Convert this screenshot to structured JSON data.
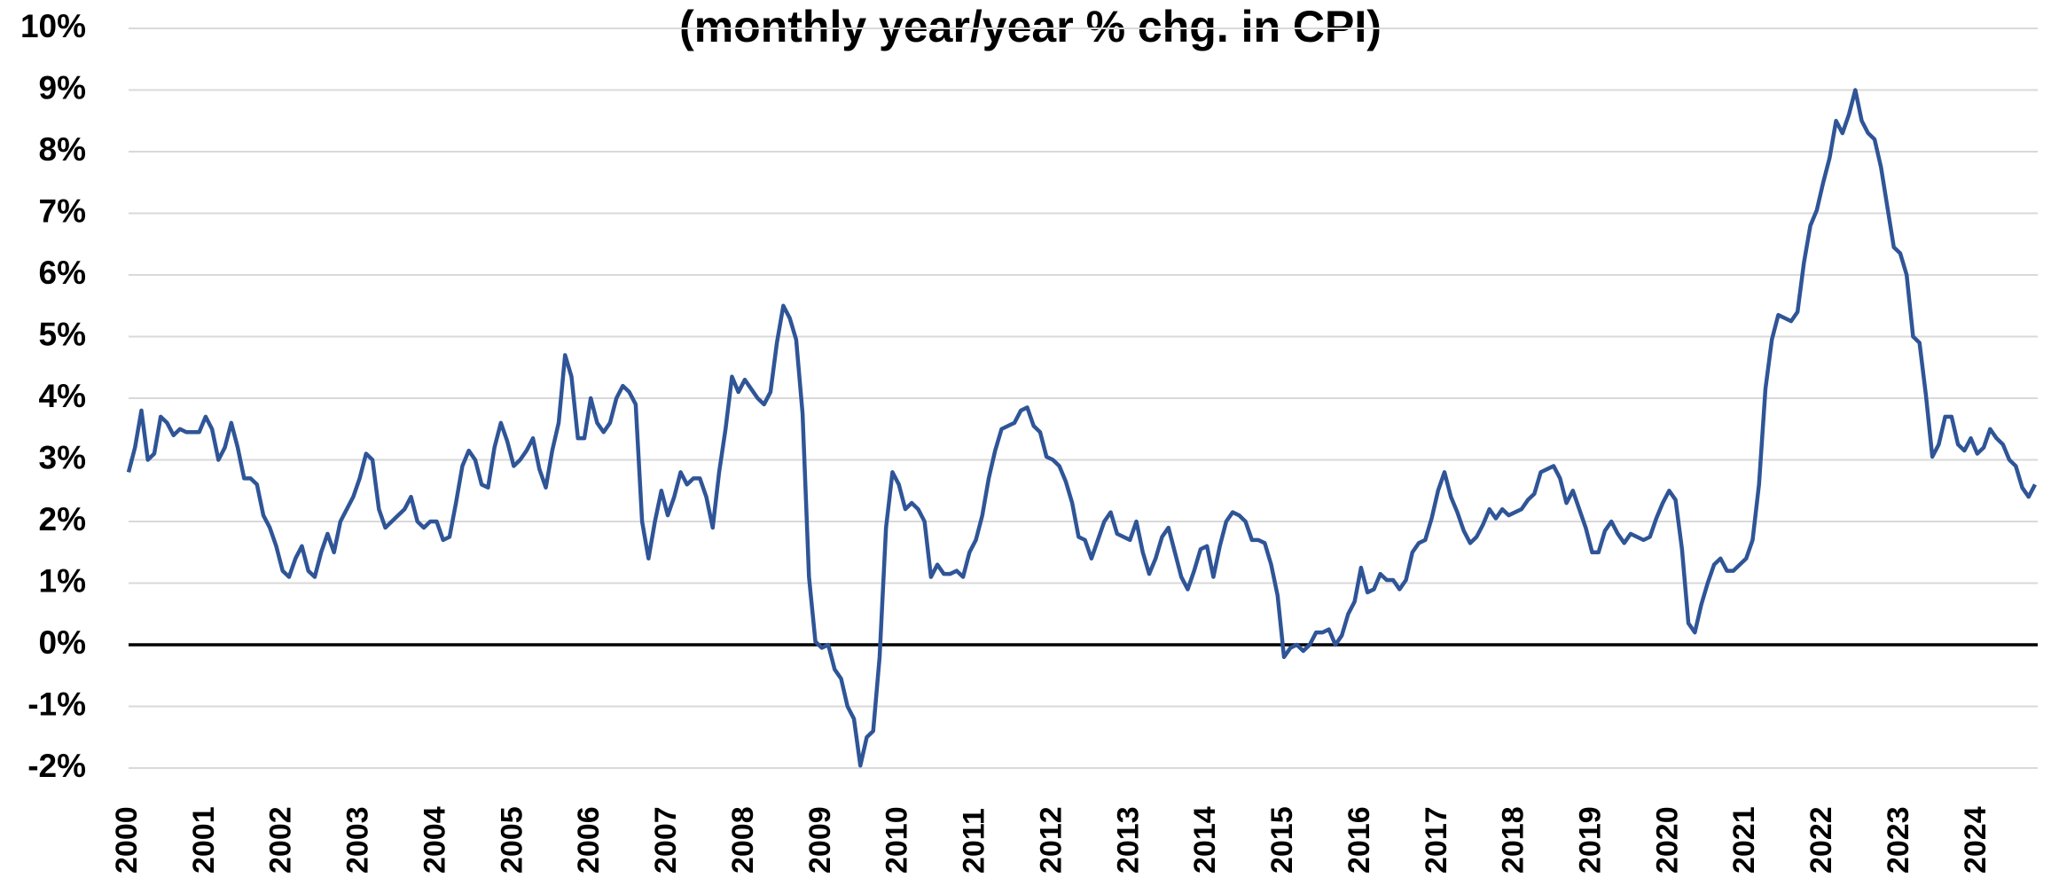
{
  "chart_data": {
    "type": "line",
    "title": "(monthly year/year % chg. in CPI)",
    "categories": [
      "2000",
      null,
      null,
      null,
      null,
      null,
      null,
      null,
      null,
      null,
      null,
      null,
      "2001",
      null,
      null,
      null,
      null,
      null,
      null,
      null,
      null,
      null,
      null,
      null,
      "2002",
      null,
      null,
      null,
      null,
      null,
      null,
      null,
      null,
      null,
      null,
      null,
      "2003",
      null,
      null,
      null,
      null,
      null,
      null,
      null,
      null,
      null,
      null,
      null,
      "2004",
      null,
      null,
      null,
      null,
      null,
      null,
      null,
      null,
      null,
      null,
      null,
      "2005",
      null,
      null,
      null,
      null,
      null,
      null,
      null,
      null,
      null,
      null,
      null,
      "2006",
      null,
      null,
      null,
      null,
      null,
      null,
      null,
      null,
      null,
      null,
      null,
      "2007",
      null,
      null,
      null,
      null,
      null,
      null,
      null,
      null,
      null,
      null,
      null,
      "2008",
      null,
      null,
      null,
      null,
      null,
      null,
      null,
      null,
      null,
      null,
      null,
      "2009",
      null,
      null,
      null,
      null,
      null,
      null,
      null,
      null,
      null,
      null,
      null,
      "2010",
      null,
      null,
      null,
      null,
      null,
      null,
      null,
      null,
      null,
      null,
      null,
      "2011",
      null,
      null,
      null,
      null,
      null,
      null,
      null,
      null,
      null,
      null,
      null,
      "2012",
      null,
      null,
      null,
      null,
      null,
      null,
      null,
      null,
      null,
      null,
      null,
      "2013",
      null,
      null,
      null,
      null,
      null,
      null,
      null,
      null,
      null,
      null,
      null,
      "2014",
      null,
      null,
      null,
      null,
      null,
      null,
      null,
      null,
      null,
      null,
      null,
      "2015",
      null,
      null,
      null,
      null,
      null,
      null,
      null,
      null,
      null,
      null,
      null,
      "2016",
      null,
      null,
      null,
      null,
      null,
      null,
      null,
      null,
      null,
      null,
      null,
      "2017",
      null,
      null,
      null,
      null,
      null,
      null,
      null,
      null,
      null,
      null,
      null,
      "2018",
      null,
      null,
      null,
      null,
      null,
      null,
      null,
      null,
      null,
      null,
      null,
      "2019",
      null,
      null,
      null,
      null,
      null,
      null,
      null,
      null,
      null,
      null,
      null,
      "2020",
      null,
      null,
      null,
      null,
      null,
      null,
      null,
      null,
      null,
      null,
      null,
      "2021",
      null,
      null,
      null,
      null,
      null,
      null,
      null,
      null,
      null,
      null,
      null,
      "2022",
      null,
      null,
      null,
      null,
      null,
      null,
      null,
      null,
      null,
      null,
      null,
      "2023",
      null,
      null,
      null,
      null,
      null,
      null,
      null,
      null,
      null,
      null,
      null,
      "2024",
      null,
      null,
      null,
      null,
      null,
      null,
      null,
      null,
      null
    ],
    "series": [
      {
        "name": "CPI",
        "color": "#2f5597",
        "values": [
          2.8,
          3.2,
          3.8,
          3.0,
          3.1,
          3.7,
          3.6,
          3.4,
          3.5,
          3.45,
          3.45,
          3.45,
          3.7,
          3.5,
          3.0,
          3.2,
          3.6,
          3.2,
          2.7,
          2.7,
          2.6,
          2.1,
          1.9,
          1.6,
          1.2,
          1.1,
          1.4,
          1.6,
          1.2,
          1.1,
          1.5,
          1.8,
          1.5,
          2.0,
          2.2,
          2.4,
          2.7,
          3.1,
          3.0,
          2.2,
          1.9,
          2.0,
          2.1,
          2.2,
          2.4,
          2.0,
          1.9,
          2.0,
          2.0,
          1.7,
          1.75,
          2.3,
          2.9,
          3.15,
          3.0,
          2.6,
          2.55,
          3.2,
          3.6,
          3.3,
          2.9,
          3.0,
          3.15,
          3.35,
          2.85,
          2.55,
          3.15,
          3.6,
          4.7,
          4.35,
          3.35,
          3.35,
          4.0,
          3.6,
          3.45,
          3.6,
          4.0,
          4.2,
          4.1,
          3.9,
          2.0,
          1.4,
          2.0,
          2.5,
          2.1,
          2.4,
          2.8,
          2.6,
          2.7,
          2.7,
          2.4,
          1.9,
          2.8,
          3.5,
          4.35,
          4.1,
          4.3,
          4.15,
          4.0,
          3.9,
          4.1,
          4.9,
          5.5,
          5.3,
          4.95,
          3.75,
          1.1,
          0.05,
          -0.05,
          0.0,
          -0.4,
          -0.55,
          -1.0,
          -1.2,
          -1.96,
          -1.5,
          -1.4,
          -0.2,
          1.9,
          2.8,
          2.6,
          2.2,
          2.3,
          2.2,
          2.0,
          1.1,
          1.3,
          1.15,
          1.15,
          1.2,
          1.1,
          1.5,
          1.7,
          2.1,
          2.7,
          3.15,
          3.5,
          3.55,
          3.6,
          3.8,
          3.85,
          3.55,
          3.45,
          3.05,
          3.0,
          2.9,
          2.65,
          2.3,
          1.75,
          1.7,
          1.4,
          1.7,
          2.0,
          2.15,
          1.8,
          1.75,
          1.7,
          2.0,
          1.5,
          1.15,
          1.4,
          1.75,
          1.9,
          1.5,
          1.1,
          0.9,
          1.2,
          1.55,
          1.6,
          1.1,
          1.6,
          2.0,
          2.15,
          2.1,
          2.0,
          1.7,
          1.7,
          1.65,
          1.3,
          0.8,
          -0.2,
          -0.05,
          0.0,
          -0.1,
          0.0,
          0.2,
          0.2,
          0.25,
          0.0,
          0.15,
          0.5,
          0.7,
          1.25,
          0.85,
          0.9,
          1.15,
          1.05,
          1.05,
          0.9,
          1.05,
          1.5,
          1.65,
          1.7,
          2.05,
          2.5,
          2.8,
          2.4,
          2.15,
          1.85,
          1.65,
          1.75,
          1.95,
          2.2,
          2.05,
          2.2,
          2.1,
          2.15,
          2.2,
          2.35,
          2.45,
          2.8,
          2.85,
          2.9,
          2.7,
          2.3,
          2.5,
          2.2,
          1.9,
          1.5,
          1.5,
          1.85,
          2.0,
          1.8,
          1.65,
          1.8,
          1.75,
          1.7,
          1.75,
          2.05,
          2.3,
          2.5,
          2.35,
          1.55,
          0.35,
          0.2,
          0.65,
          1.0,
          1.3,
          1.4,
          1.2,
          1.2,
          1.3,
          1.4,
          1.7,
          2.6,
          4.15,
          4.95,
          5.35,
          5.3,
          5.25,
          5.4,
          6.2,
          6.8,
          7.05,
          7.5,
          7.9,
          8.5,
          8.3,
          8.6,
          9.0,
          8.5,
          8.3,
          8.2,
          7.75,
          7.1,
          6.45,
          6.35,
          6.0,
          5.0,
          4.9,
          4.05,
          3.05,
          3.25,
          3.7,
          3.7,
          3.25,
          3.15,
          3.35,
          3.1,
          3.2,
          3.5,
          3.35,
          3.25,
          3.0,
          2.9,
          2.55,
          2.4,
          2.6
        ]
      }
    ],
    "ylim": [
      -2,
      10
    ],
    "yticks": [
      {
        "value": -2,
        "label": "-2%"
      },
      {
        "value": -1,
        "label": "-1%"
      },
      {
        "value": 0,
        "label": "0%"
      },
      {
        "value": 1,
        "label": "1%"
      },
      {
        "value": 2,
        "label": "2%"
      },
      {
        "value": 3,
        "label": "3%"
      },
      {
        "value": 4,
        "label": "4%"
      },
      {
        "value": 5,
        "label": "5%"
      },
      {
        "value": 6,
        "label": "6%"
      },
      {
        "value": 7,
        "label": "7%"
      },
      {
        "value": 8,
        "label": "8%"
      },
      {
        "value": 9,
        "label": "9%"
      },
      {
        "value": 10,
        "label": "10%"
      }
    ],
    "grid": true
  }
}
